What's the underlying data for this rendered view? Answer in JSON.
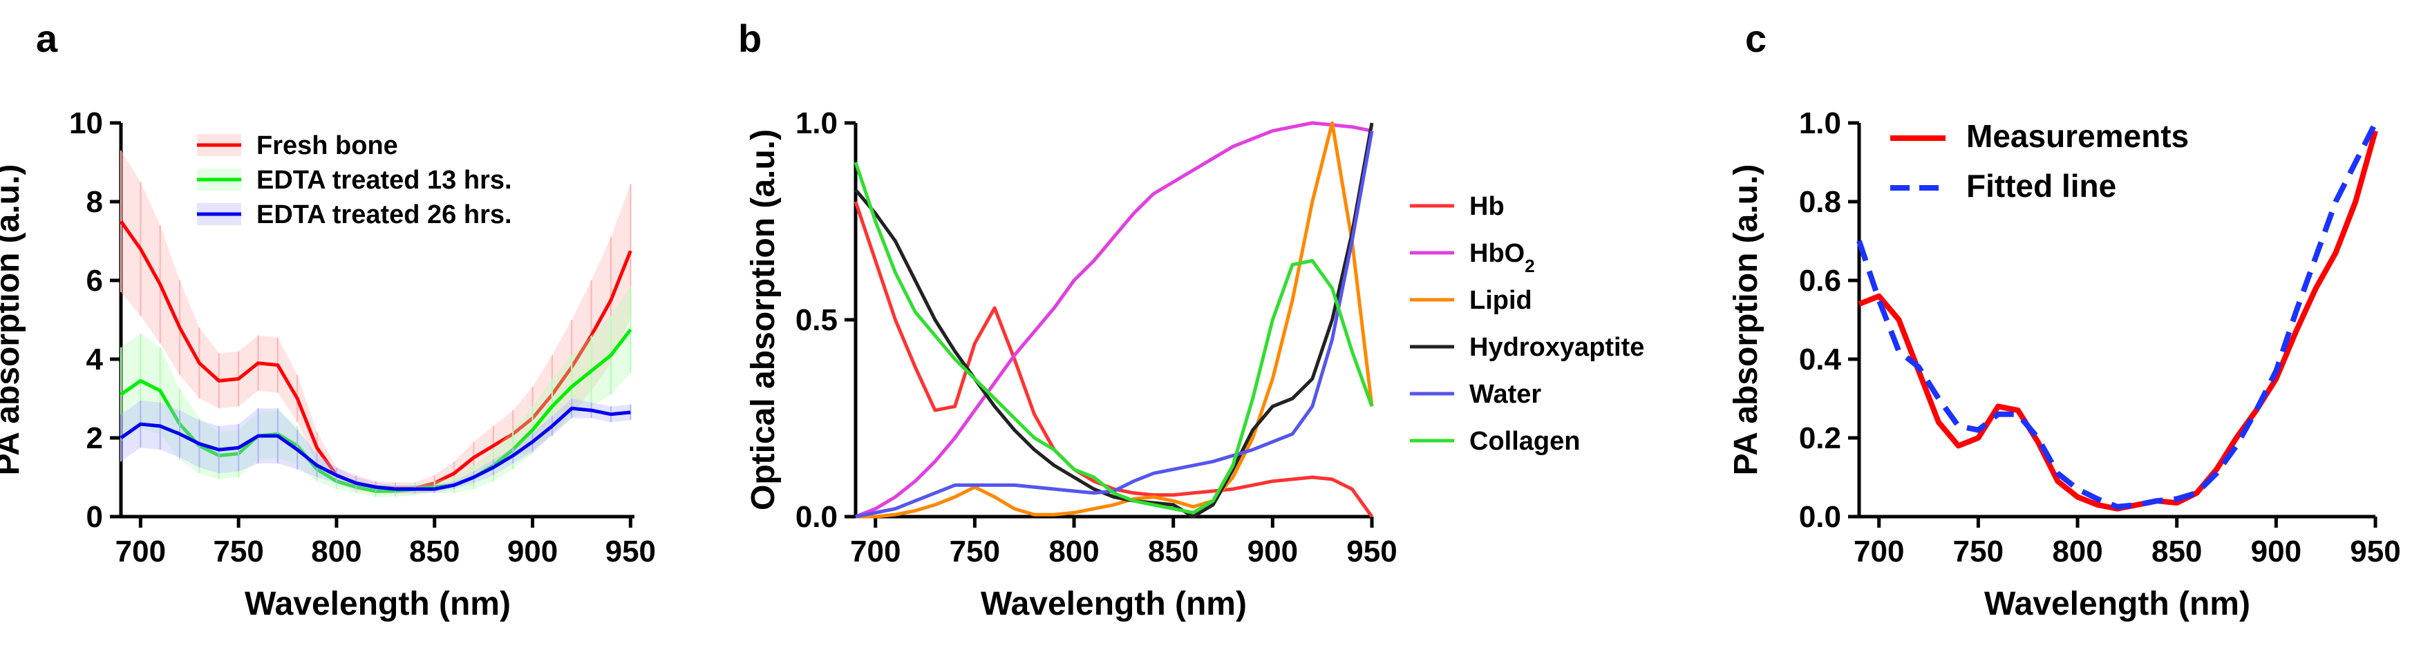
{
  "chart_data": [
    {
      "panel": "a",
      "type": "line",
      "xlabel": "Wavelength (nm)",
      "ylabel": "PA absorption (a.u.)",
      "xlim": [
        690,
        952
      ],
      "ylim": [
        0,
        10
      ],
      "xticks": [
        "700",
        "750",
        "800",
        "850",
        "900",
        "950"
      ],
      "yticks": [
        "0",
        "2",
        "4",
        "6",
        "8",
        "10"
      ],
      "legend_position": "top-center",
      "series": [
        {
          "name": "Fresh bone",
          "color": "#ff0000",
          "band_color": "#ffb3b3",
          "x": [
            690,
            700,
            710,
            720,
            730,
            740,
            750,
            760,
            770,
            780,
            790,
            800,
            810,
            820,
            830,
            840,
            850,
            860,
            870,
            880,
            890,
            900,
            910,
            920,
            930,
            940,
            950
          ],
          "y": [
            7.5,
            6.8,
            5.9,
            4.8,
            3.9,
            3.45,
            3.5,
            3.9,
            3.85,
            3.0,
            1.75,
            1.05,
            0.85,
            0.75,
            0.72,
            0.72,
            0.85,
            1.1,
            1.5,
            1.8,
            2.1,
            2.5,
            3.1,
            3.8,
            4.6,
            5.5,
            6.75
          ],
          "err": [
            1.8,
            1.7,
            1.5,
            1.2,
            0.9,
            0.7,
            0.7,
            0.7,
            0.7,
            0.6,
            0.4,
            0.2,
            0.2,
            0.15,
            0.15,
            0.15,
            0.2,
            0.3,
            0.4,
            0.5,
            0.6,
            0.8,
            1.0,
            1.2,
            1.4,
            1.6,
            1.7
          ]
        },
        {
          "name": "EDTA treated 13 hrs.",
          "color": "#00ee00",
          "band_color": "#b3ffb3",
          "x": [
            690,
            700,
            710,
            720,
            730,
            740,
            750,
            760,
            770,
            780,
            790,
            800,
            810,
            820,
            830,
            840,
            850,
            860,
            870,
            880,
            890,
            900,
            910,
            920,
            930,
            940,
            950
          ],
          "y": [
            3.1,
            3.45,
            3.2,
            2.35,
            1.8,
            1.55,
            1.6,
            2.05,
            2.1,
            1.8,
            1.2,
            0.9,
            0.75,
            0.65,
            0.65,
            0.7,
            0.75,
            0.8,
            1.0,
            1.3,
            1.7,
            2.2,
            2.8,
            3.3,
            3.7,
            4.1,
            4.75
          ],
          "err": [
            1.2,
            1.2,
            1.1,
            0.9,
            0.7,
            0.6,
            0.6,
            0.6,
            0.6,
            0.5,
            0.3,
            0.2,
            0.15,
            0.15,
            0.15,
            0.15,
            0.15,
            0.2,
            0.3,
            0.4,
            0.5,
            0.6,
            0.7,
            0.8,
            0.9,
            1.0,
            1.1
          ]
        },
        {
          "name": "EDTA treated 26 hrs.",
          "color": "#0000ee",
          "band_color": "#b3b3ff",
          "x": [
            690,
            700,
            710,
            720,
            730,
            740,
            750,
            760,
            770,
            780,
            790,
            800,
            810,
            820,
            830,
            840,
            850,
            860,
            870,
            880,
            890,
            900,
            910,
            920,
            930,
            940,
            950
          ],
          "y": [
            2.0,
            2.35,
            2.3,
            2.1,
            1.85,
            1.7,
            1.75,
            2.05,
            2.05,
            1.7,
            1.3,
            1.05,
            0.85,
            0.75,
            0.7,
            0.7,
            0.7,
            0.8,
            1.0,
            1.25,
            1.55,
            1.9,
            2.3,
            2.75,
            2.7,
            2.6,
            2.65
          ],
          "err": [
            0.6,
            0.6,
            0.6,
            0.6,
            0.6,
            0.6,
            0.6,
            0.7,
            0.7,
            0.5,
            0.3,
            0.2,
            0.15,
            0.12,
            0.1,
            0.1,
            0.1,
            0.1,
            0.15,
            0.2,
            0.2,
            0.25,
            0.25,
            0.25,
            0.2,
            0.2,
            0.2
          ]
        }
      ]
    },
    {
      "panel": "b",
      "type": "line",
      "xlabel": "Wavelength (nm)",
      "ylabel": "Optical absorption (a.u.)",
      "xlim": [
        690,
        950
      ],
      "ylim": [
        0,
        1.0
      ],
      "xticks": [
        "700",
        "750",
        "800",
        "850",
        "900",
        "950"
      ],
      "yticks": [
        "0.0",
        "0.5",
        "1.0"
      ],
      "legend_position": "right",
      "series": [
        {
          "name": "Hb",
          "color": "#ff3333",
          "x": [
            690,
            700,
            710,
            720,
            730,
            740,
            750,
            760,
            770,
            780,
            790,
            800,
            810,
            820,
            830,
            840,
            850,
            860,
            870,
            880,
            890,
            900,
            910,
            920,
            930,
            940,
            950
          ],
          "y": [
            0.8,
            0.65,
            0.5,
            0.38,
            0.27,
            0.28,
            0.44,
            0.53,
            0.4,
            0.26,
            0.17,
            0.12,
            0.09,
            0.07,
            0.06,
            0.055,
            0.055,
            0.06,
            0.065,
            0.07,
            0.08,
            0.09,
            0.095,
            0.1,
            0.095,
            0.07,
            0.0
          ]
        },
        {
          "name": "HbO2",
          "color": "#e040e0",
          "x": [
            690,
            700,
            710,
            720,
            730,
            740,
            750,
            760,
            770,
            780,
            790,
            800,
            810,
            820,
            830,
            840,
            850,
            860,
            870,
            880,
            890,
            900,
            910,
            920,
            930,
            940,
            950
          ],
          "y": [
            0.0,
            0.02,
            0.05,
            0.09,
            0.14,
            0.2,
            0.27,
            0.34,
            0.41,
            0.47,
            0.53,
            0.6,
            0.65,
            0.71,
            0.77,
            0.82,
            0.85,
            0.88,
            0.91,
            0.94,
            0.96,
            0.98,
            0.99,
            1.0,
            0.995,
            0.99,
            0.98
          ]
        },
        {
          "name": "Lipid",
          "color": "#ff8800",
          "x": [
            690,
            700,
            710,
            720,
            730,
            740,
            750,
            760,
            770,
            780,
            790,
            800,
            810,
            820,
            830,
            840,
            850,
            860,
            870,
            880,
            890,
            900,
            910,
            920,
            930,
            940,
            950
          ],
          "y": [
            0.0,
            0.0,
            0.005,
            0.015,
            0.03,
            0.05,
            0.075,
            0.05,
            0.02,
            0.005,
            0.005,
            0.01,
            0.02,
            0.03,
            0.045,
            0.05,
            0.04,
            0.025,
            0.04,
            0.1,
            0.2,
            0.35,
            0.55,
            0.8,
            1.0,
            0.7,
            0.28
          ]
        },
        {
          "name": "Hydroxyaptite",
          "color": "#222222",
          "x": [
            690,
            700,
            710,
            720,
            730,
            740,
            750,
            760,
            770,
            780,
            790,
            800,
            810,
            820,
            830,
            840,
            850,
            860,
            870,
            880,
            890,
            900,
            910,
            920,
            930,
            940,
            950
          ],
          "y": [
            0.83,
            0.77,
            0.7,
            0.6,
            0.5,
            0.42,
            0.35,
            0.28,
            0.22,
            0.17,
            0.13,
            0.1,
            0.07,
            0.05,
            0.04,
            0.035,
            0.03,
            0.0,
            0.03,
            0.12,
            0.22,
            0.28,
            0.3,
            0.35,
            0.5,
            0.72,
            1.0
          ]
        },
        {
          "name": "Water",
          "color": "#5555ee",
          "x": [
            690,
            700,
            710,
            720,
            730,
            740,
            750,
            760,
            770,
            780,
            790,
            800,
            810,
            820,
            830,
            840,
            850,
            860,
            870,
            880,
            890,
            900,
            910,
            920,
            930,
            940,
            950
          ],
          "y": [
            0.0,
            0.01,
            0.02,
            0.04,
            0.06,
            0.08,
            0.08,
            0.08,
            0.08,
            0.075,
            0.07,
            0.065,
            0.06,
            0.065,
            0.09,
            0.11,
            0.12,
            0.13,
            0.14,
            0.155,
            0.17,
            0.19,
            0.21,
            0.28,
            0.45,
            0.7,
            0.98
          ]
        },
        {
          "name": "Collagen",
          "color": "#33dd33",
          "x": [
            690,
            700,
            710,
            720,
            730,
            740,
            750,
            760,
            770,
            780,
            790,
            800,
            810,
            820,
            830,
            840,
            850,
            860,
            870,
            880,
            890,
            900,
            910,
            920,
            930,
            940,
            950
          ],
          "y": [
            0.9,
            0.75,
            0.62,
            0.52,
            0.46,
            0.4,
            0.35,
            0.3,
            0.25,
            0.2,
            0.17,
            0.12,
            0.1,
            0.06,
            0.04,
            0.03,
            0.02,
            0.01,
            0.04,
            0.13,
            0.3,
            0.5,
            0.64,
            0.65,
            0.58,
            0.42,
            0.28
          ]
        }
      ]
    },
    {
      "panel": "c",
      "type": "line",
      "xlabel": "Wavelength (nm)",
      "ylabel": "PA absorption (a.u.)",
      "xlim": [
        690,
        950
      ],
      "ylim": [
        0,
        1.0
      ],
      "xticks": [
        "700",
        "750",
        "800",
        "850",
        "900",
        "950"
      ],
      "yticks": [
        "0.0",
        "0.2",
        "0.4",
        "0.6",
        "0.8",
        "1.0"
      ],
      "legend_position": "top-left",
      "series": [
        {
          "name": "Measurements",
          "color": "#ff0000",
          "style": "solid",
          "x": [
            690,
            700,
            710,
            720,
            730,
            740,
            750,
            760,
            770,
            780,
            790,
            800,
            810,
            820,
            830,
            840,
            850,
            860,
            870,
            880,
            890,
            900,
            910,
            920,
            930,
            940,
            950
          ],
          "y": [
            0.54,
            0.56,
            0.5,
            0.37,
            0.24,
            0.18,
            0.2,
            0.28,
            0.27,
            0.19,
            0.09,
            0.05,
            0.03,
            0.02,
            0.03,
            0.04,
            0.035,
            0.06,
            0.12,
            0.2,
            0.27,
            0.35,
            0.47,
            0.58,
            0.67,
            0.8,
            0.98
          ]
        },
        {
          "name": "Fitted line",
          "color": "#1a33ff",
          "style": "dashed",
          "x": [
            690,
            700,
            710,
            720,
            730,
            740,
            750,
            760,
            770,
            780,
            790,
            800,
            810,
            820,
            830,
            840,
            850,
            860,
            870,
            880,
            890,
            900,
            910,
            920,
            930,
            940,
            950
          ],
          "y": [
            0.7,
            0.55,
            0.42,
            0.38,
            0.3,
            0.23,
            0.22,
            0.26,
            0.26,
            0.2,
            0.11,
            0.07,
            0.045,
            0.025,
            0.03,
            0.04,
            0.045,
            0.06,
            0.11,
            0.18,
            0.27,
            0.37,
            0.52,
            0.66,
            0.8,
            0.9,
            1.0
          ]
        }
      ]
    }
  ],
  "panel_labels": [
    "a",
    "b",
    "c"
  ]
}
